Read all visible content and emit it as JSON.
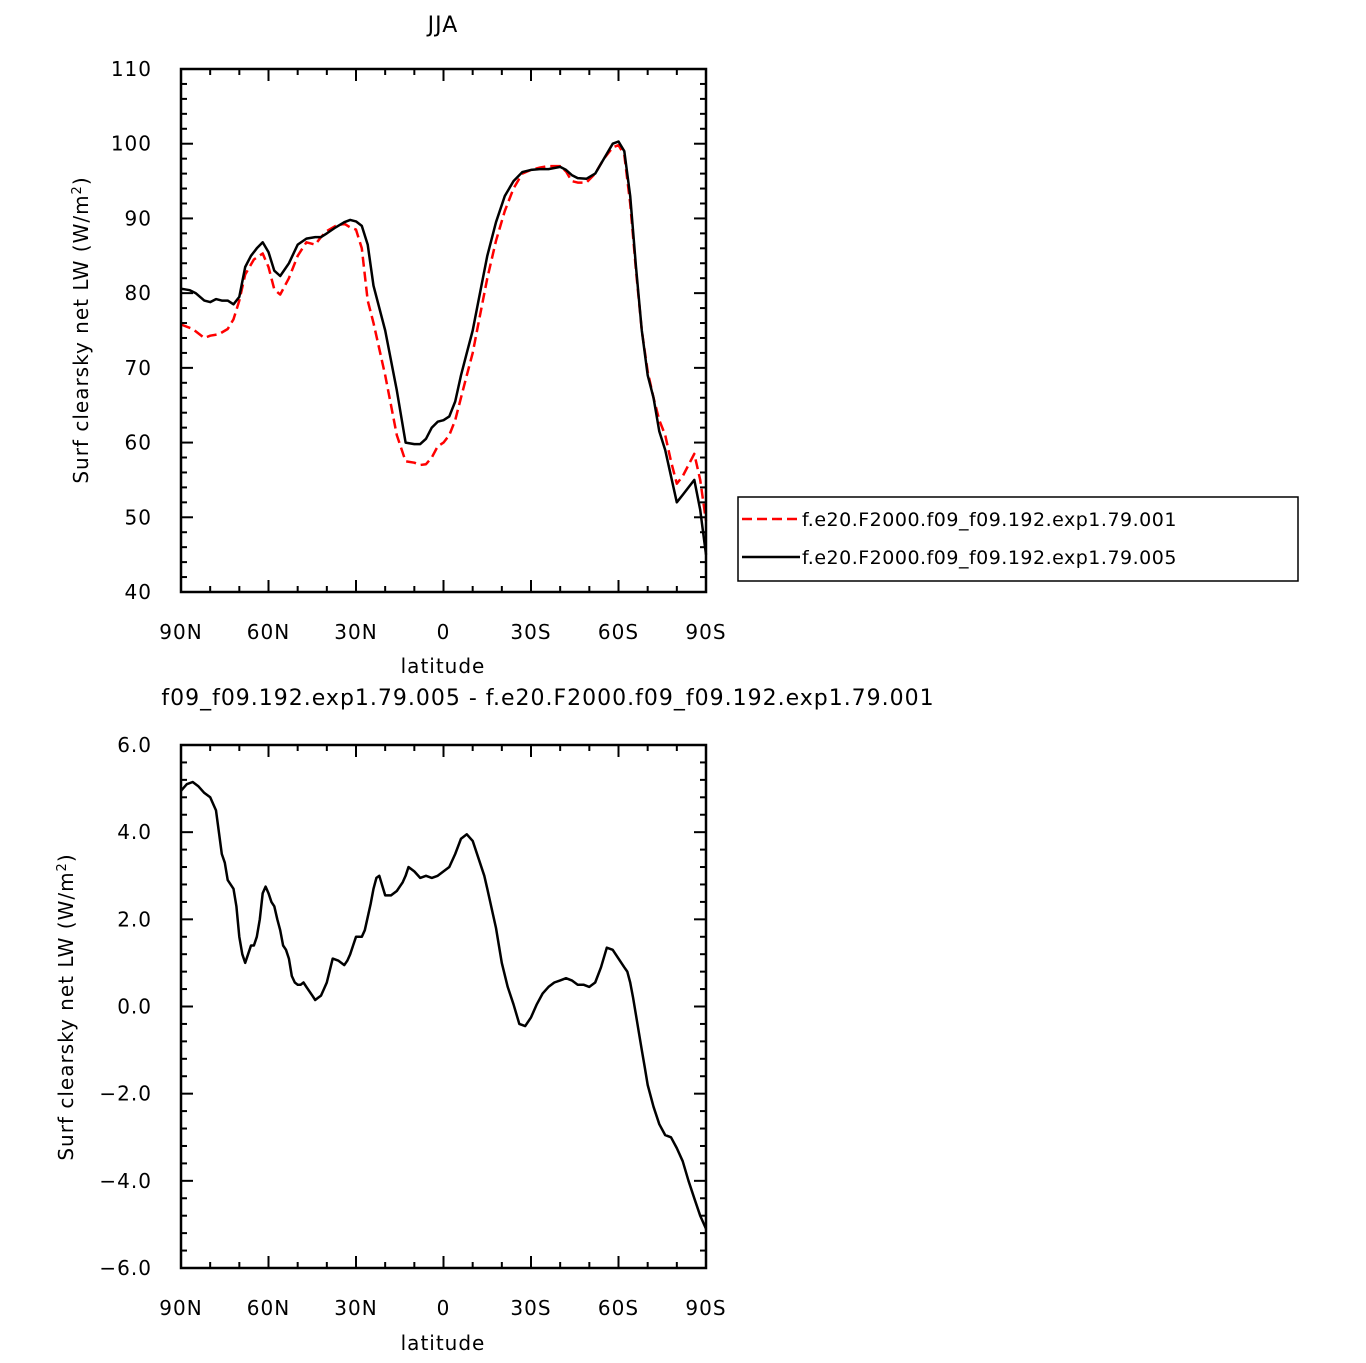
{
  "chart_data": [
    {
      "type": "line",
      "title": "JJA",
      "xlabel": "latitude",
      "ylabel": "Surf clearsky net LW (W/m",
      "ylabel_sup": "2",
      "ylabel_end": ")",
      "xlim": [
        90,
        -90
      ],
      "ylim": [
        40,
        110
      ],
      "x_ticks": [
        {
          "value": 90,
          "label": "90N"
        },
        {
          "value": 60,
          "label": "60N"
        },
        {
          "value": 30,
          "label": "30N"
        },
        {
          "value": 0,
          "label": "0"
        },
        {
          "value": -30,
          "label": "30S"
        },
        {
          "value": -60,
          "label": "60S"
        },
        {
          "value": -90,
          "label": "90S"
        }
      ],
      "y_ticks": [
        {
          "value": 40,
          "label": "40"
        },
        {
          "value": 50,
          "label": "50"
        },
        {
          "value": 60,
          "label": "60"
        },
        {
          "value": 70,
          "label": "70"
        },
        {
          "value": 80,
          "label": "80"
        },
        {
          "value": 90,
          "label": "90"
        },
        {
          "value": 100,
          "label": "100"
        },
        {
          "value": 110,
          "label": "110"
        }
      ],
      "grid": false,
      "legend_position": "right",
      "series": [
        {
          "name": "f.e20.F2000.f09_f09.192.exp1.79.001",
          "color": "#ff0000",
          "dash": "dashed",
          "x": [
            90,
            86,
            82,
            80,
            77,
            74,
            72,
            70,
            68,
            65,
            62,
            60,
            58,
            56,
            53,
            50,
            47,
            44,
            42,
            40,
            37,
            34,
            32,
            30,
            28,
            26,
            24,
            20,
            16,
            13,
            10,
            8,
            6,
            4,
            2,
            0,
            -2,
            -4,
            -6,
            -8,
            -10,
            -12,
            -15,
            -18,
            -21,
            -24,
            -27,
            -30,
            -33,
            -36,
            -40,
            -42,
            -44,
            -46,
            -49,
            -52,
            -55,
            -58,
            -60,
            -62,
            -64,
            -66,
            -68,
            -70,
            -72,
            -74,
            -76,
            -78,
            -80,
            -82,
            -84,
            -86,
            -88,
            -90
          ],
          "y": [
            75.8,
            75.2,
            74.0,
            74.3,
            74.5,
            75.2,
            76.5,
            79.0,
            82.5,
            84.5,
            85.3,
            83.5,
            80.5,
            79.8,
            82.0,
            85.0,
            86.8,
            86.5,
            87.5,
            88.3,
            89.0,
            89.3,
            88.8,
            88.5,
            86.0,
            79.0,
            76.0,
            69.0,
            61.0,
            57.5,
            57.3,
            57.0,
            57.1,
            58.0,
            59.5,
            60.0,
            61.0,
            63.0,
            66.0,
            69.0,
            72.0,
            76.0,
            82.0,
            87.0,
            91.0,
            94.0,
            96.0,
            96.5,
            96.8,
            97.0,
            97.0,
            96.3,
            95.0,
            94.8,
            94.8,
            96.0,
            98.0,
            99.5,
            99.8,
            98.5,
            92.0,
            83.0,
            75.0,
            69.5,
            66.0,
            63.0,
            61.0,
            57.5,
            54.5,
            55.5,
            57.0,
            58.5,
            55.0,
            49.5
          ]
        },
        {
          "name": "f.e20.F2000.f09_f09.192.exp1.79.005",
          "color": "#000000",
          "dash": "solid",
          "x": [
            90,
            87,
            85,
            82,
            80,
            78,
            76,
            74,
            72,
            70,
            68,
            66,
            64,
            62,
            60,
            58,
            56,
            53,
            50,
            47,
            44,
            42,
            40,
            37,
            34,
            32,
            30,
            28,
            26,
            24,
            20,
            16,
            13,
            10,
            8,
            6,
            4,
            2,
            0,
            -2,
            -4,
            -6,
            -8,
            -10,
            -12,
            -15,
            -18,
            -21,
            -24,
            -27,
            -30,
            -33,
            -36,
            -40,
            -42,
            -44,
            -46,
            -49,
            -52,
            -55,
            -58,
            -60,
            -62,
            -64,
            -66,
            -68,
            -70,
            -72,
            -74,
            -76,
            -78,
            -80,
            -82,
            -84,
            -86,
            -88,
            -90
          ],
          "y": [
            80.6,
            80.4,
            80.0,
            79.0,
            78.8,
            79.2,
            79.0,
            79.0,
            78.5,
            79.5,
            83.5,
            85.0,
            86.0,
            86.8,
            85.5,
            83.0,
            82.3,
            84.0,
            86.5,
            87.3,
            87.5,
            87.5,
            88.0,
            88.8,
            89.5,
            89.8,
            89.6,
            89.0,
            86.5,
            81.0,
            75.0,
            67.0,
            60.0,
            59.8,
            59.8,
            60.5,
            62.0,
            62.8,
            63.0,
            63.5,
            65.5,
            69.0,
            72.0,
            75.0,
            79.0,
            85.0,
            89.5,
            93.0,
            95.0,
            96.2,
            96.5,
            96.6,
            96.6,
            96.9,
            96.5,
            95.8,
            95.4,
            95.3,
            96.0,
            98.0,
            100.0,
            100.3,
            99.0,
            93.0,
            83.5,
            75.0,
            69.0,
            66.0,
            61.5,
            59.0,
            55.5,
            52.0,
            53.0,
            54.0,
            55.0,
            51.0,
            45.0
          ]
        }
      ]
    },
    {
      "type": "line",
      "title": "f09_f09.192.exp1.79.005 - f.e20.F2000.f09_f09.192.exp1.79.001",
      "xlabel": "latitude",
      "ylabel": "Surf clearsky net LW (W/m",
      "ylabel_sup": "2",
      "ylabel_end": ")",
      "xlim": [
        90,
        -90
      ],
      "ylim": [
        -6,
        6
      ],
      "x_ticks": [
        {
          "value": 90,
          "label": "90N"
        },
        {
          "value": 60,
          "label": "60N"
        },
        {
          "value": 30,
          "label": "30N"
        },
        {
          "value": 0,
          "label": "0"
        },
        {
          "value": -30,
          "label": "30S"
        },
        {
          "value": -60,
          "label": "60S"
        },
        {
          "value": -90,
          "label": "90S"
        }
      ],
      "y_ticks": [
        {
          "value": 6,
          "label": "6.0"
        },
        {
          "value": 4,
          "label": "4.0"
        },
        {
          "value": 2,
          "label": "2.0"
        },
        {
          "value": 0,
          "label": "0.0"
        },
        {
          "value": -2,
          "label": "−2.0"
        },
        {
          "value": -4,
          "label": "−4.0"
        },
        {
          "value": -6,
          "label": "−6.0"
        }
      ],
      "grid": false,
      "series": [
        {
          "name": "",
          "color": "#000000",
          "dash": "solid",
          "x": [
            90,
            88,
            86,
            84,
            82,
            80,
            78,
            77,
            76,
            75,
            74,
            72,
            71,
            70,
            69,
            68,
            67,
            66,
            65,
            64,
            63,
            62,
            61,
            60,
            59,
            58,
            57,
            56,
            55,
            54,
            53,
            52,
            51,
            50,
            49,
            48,
            47,
            46,
            45,
            44,
            43,
            42,
            41,
            40,
            38,
            36,
            34,
            33,
            32,
            31,
            30,
            29,
            28,
            27,
            26,
            25,
            24,
            23,
            22,
            20,
            18,
            16,
            15,
            14,
            13,
            12,
            10,
            8,
            6,
            4,
            2,
            0,
            -2,
            -4,
            -6,
            -8,
            -10,
            -12,
            -14,
            -15,
            -16,
            -17,
            -18,
            -19,
            -20,
            -22,
            -24,
            -26,
            -28,
            -30,
            -32,
            -34,
            -36,
            -38,
            -40,
            -42,
            -44,
            -46,
            -48,
            -50,
            -52,
            -54,
            -56,
            -58,
            -60,
            -61,
            -62,
            -63,
            -64,
            -65,
            -66,
            -67,
            -68,
            -69,
            -70,
            -72,
            -74,
            -76,
            -78,
            -80,
            -82,
            -84,
            -86,
            -88,
            -90
          ],
          "y": [
            4.95,
            5.1,
            5.15,
            5.05,
            4.9,
            4.8,
            4.5,
            4.0,
            3.5,
            3.3,
            2.9,
            2.7,
            2.3,
            1.6,
            1.2,
            1.0,
            1.2,
            1.4,
            1.4,
            1.6,
            2.0,
            2.6,
            2.75,
            2.6,
            2.4,
            2.3,
            2.0,
            1.75,
            1.4,
            1.3,
            1.1,
            0.7,
            0.55,
            0.5,
            0.5,
            0.55,
            0.45,
            0.35,
            0.25,
            0.15,
            0.2,
            0.25,
            0.4,
            0.55,
            1.1,
            1.05,
            0.95,
            1.05,
            1.2,
            1.4,
            1.6,
            1.6,
            1.6,
            1.75,
            2.05,
            2.35,
            2.7,
            2.95,
            3.0,
            2.55,
            2.55,
            2.65,
            2.75,
            2.85,
            3.0,
            3.2,
            3.1,
            2.95,
            3.0,
            2.95,
            3.0,
            3.1,
            3.2,
            3.5,
            3.85,
            3.95,
            3.8,
            3.4,
            3.0,
            2.7,
            2.4,
            2.1,
            1.8,
            1.4,
            1.0,
            0.45,
            0.05,
            -0.4,
            -0.45,
            -0.25,
            0.05,
            0.3,
            0.45,
            0.55,
            0.6,
            0.65,
            0.6,
            0.5,
            0.5,
            0.45,
            0.55,
            0.9,
            1.35,
            1.3,
            1.1,
            1.0,
            0.9,
            0.8,
            0.55,
            0.2,
            -0.2,
            -0.6,
            -1.0,
            -1.4,
            -1.8,
            -2.3,
            -2.7,
            -2.95,
            -3.0,
            -3.25,
            -3.55,
            -4.0,
            -4.4,
            -4.8,
            -5.1
          ]
        }
      ]
    }
  ]
}
